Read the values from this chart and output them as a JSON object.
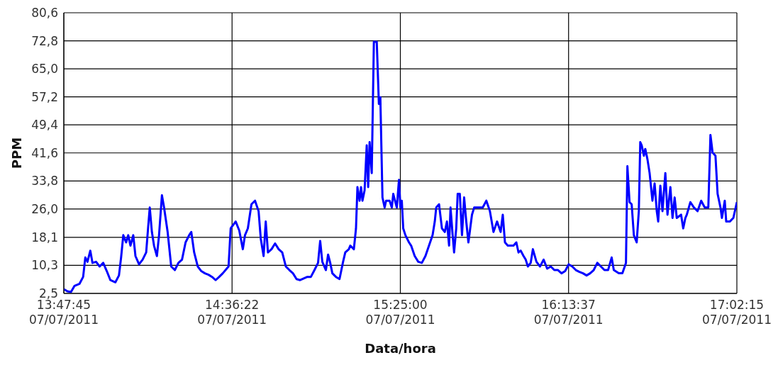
{
  "chart_data": {
    "type": "line",
    "xlabel": "Data/hora",
    "ylabel": "PPM",
    "color": "#0000ff",
    "grid": true,
    "marker": "none",
    "line_style": "solid",
    "xlim": [
      "2011-07-07T13:47:45",
      "2011-07-07T17:02:15"
    ],
    "xticks": [
      {
        "value": "2011-07-07T13:47:45",
        "label": "13:47:45\n07/07/2011"
      },
      {
        "value": "2011-07-07T14:36:22",
        "label": "14:36:22\n07/07/2011"
      },
      {
        "value": "2011-07-07T15:25:00",
        "label": "15:25:00\n07/07/2011"
      },
      {
        "value": "2011-07-07T16:13:37",
        "label": "16:13:37\n07/07/2011"
      },
      {
        "value": "2011-07-07T17:02:15",
        "label": "17:02:15\n07/07/2011"
      }
    ],
    "ylim": [
      2.5,
      80.6
    ],
    "yticks": [
      {
        "value": 2.5,
        "label": "2,5"
      },
      {
        "value": 10.3,
        "label": "10,3"
      },
      {
        "value": 18.1,
        "label": "18,1"
      },
      {
        "value": 26.0,
        "label": "26,0"
      },
      {
        "value": 33.8,
        "label": "33,8"
      },
      {
        "value": 41.6,
        "label": "41,6"
      },
      {
        "value": 49.4,
        "label": "49,4"
      },
      {
        "value": 57.2,
        "label": "57,2"
      },
      {
        "value": 65.0,
        "label": "65,0"
      },
      {
        "value": 72.8,
        "label": "72,8"
      },
      {
        "value": 80.6,
        "label": "80,6"
      }
    ],
    "x": [
      "2011-07-07T13:47:45",
      "2011-07-07T13:48:47",
      "2011-07-07T13:49:49",
      "2011-07-07T13:50:51",
      "2011-07-07T13:52:18",
      "2011-07-07T13:53:20",
      "2011-07-07T13:53:57",
      "2011-07-07T13:54:35",
      "2011-07-07T13:55:24",
      "2011-07-07T13:56:02",
      "2011-07-07T13:57:04",
      "2011-07-07T13:58:06",
      "2011-07-07T13:59:08",
      "2011-07-07T14:00:10",
      "2011-07-07T14:01:12",
      "2011-07-07T14:02:39",
      "2011-07-07T14:03:41",
      "2011-07-07T14:04:18",
      "2011-07-07T14:04:56",
      "2011-07-07T14:05:45",
      "2011-07-07T14:06:22",
      "2011-07-07T14:07:00",
      "2011-07-07T14:07:49",
      "2011-07-07T14:08:27",
      "2011-07-07T14:09:29",
      "2011-07-07T14:10:31",
      "2011-07-07T14:11:33",
      "2011-07-07T14:12:10",
      "2011-07-07T14:12:35",
      "2011-07-07T14:13:12",
      "2011-07-07T14:13:49",
      "2011-07-07T14:14:39",
      "2011-07-07T14:15:16",
      "2011-07-07T14:16:06",
      "2011-07-07T14:16:43",
      "2011-07-07T14:17:45",
      "2011-07-07T14:18:47",
      "2011-07-07T14:19:50",
      "2011-07-07T14:20:52",
      "2011-07-07T14:21:54",
      "2011-07-07T14:22:56",
      "2011-07-07T14:23:58",
      "2011-07-07T14:24:35",
      "2011-07-07T14:25:25",
      "2011-07-07T14:26:27",
      "2011-07-07T14:27:29",
      "2011-07-07T14:28:31",
      "2011-07-07T14:29:33",
      "2011-07-07T14:30:35",
      "2011-07-07T14:31:37",
      "2011-07-07T14:32:39",
      "2011-07-07T14:33:41",
      "2011-07-07T14:35:21",
      "2011-07-07T14:35:58",
      "2011-07-07T14:37:25",
      "2011-07-07T14:38:27",
      "2011-07-07T14:39:29",
      "2011-07-07T14:40:06",
      "2011-07-07T14:40:56",
      "2011-07-07T14:41:58",
      "2011-07-07T14:43:00",
      "2011-07-07T14:44:02",
      "2011-07-07T14:44:40",
      "2011-07-07T14:45:29",
      "2011-07-07T14:46:06",
      "2011-07-07T14:46:44",
      "2011-07-07T14:47:46",
      "2011-07-07T14:48:48",
      "2011-07-07T14:49:50",
      "2011-07-07T14:50:52",
      "2011-07-07T14:51:54",
      "2011-07-07T14:52:56",
      "2011-07-07T14:53:58",
      "2011-07-07T14:55:00",
      "2011-07-07T14:56:02",
      "2011-07-07T14:58:07",
      "2011-07-07T14:59:09",
      "2011-07-07T15:00:11",
      "2011-07-07T15:01:13",
      "2011-07-07T15:01:50",
      "2011-07-07T15:02:27",
      "2011-07-07T15:03:29",
      "2011-07-07T15:04:07",
      "2011-07-07T15:04:44",
      "2011-07-07T15:05:21",
      "2011-07-07T15:06:23",
      "2011-07-07T15:07:25",
      "2011-07-07T15:08:27",
      "2011-07-07T15:09:05",
      "2011-07-07T15:10:07",
      "2011-07-07T15:10:32",
      "2011-07-07T15:11:34",
      "2011-07-07T15:12:11",
      "2011-07-07T15:12:36",
      "2011-07-07T15:13:13",
      "2011-07-07T15:13:38",
      "2011-07-07T15:14:03",
      "2011-07-07T15:14:40",
      "2011-07-07T15:15:17",
      "2011-07-07T15:15:42",
      "2011-07-07T15:16:07",
      "2011-07-07T15:16:44",
      "2011-07-07T15:17:21",
      "2011-07-07T15:18:11",
      "2011-07-07T15:18:48",
      "2011-07-07T15:19:13",
      "2011-07-07T15:19:50",
      "2011-07-07T15:20:28",
      "2011-07-07T15:20:52",
      "2011-07-07T15:21:54",
      "2011-07-07T15:22:32",
      "2011-07-07T15:22:57",
      "2011-07-07T15:23:59",
      "2011-07-07T15:24:36",
      "2011-07-07T15:25:01",
      "2011-07-07T15:25:25",
      "2011-07-07T15:25:50",
      "2011-07-07T15:26:28",
      "2011-07-07T15:27:30",
      "2011-07-07T15:28:07",
      "2011-07-07T15:29:09",
      "2011-07-07T15:30:11",
      "2011-07-07T15:31:13",
      "2011-07-07T15:32:15",
      "2011-07-07T15:33:17",
      "2011-07-07T15:34:19",
      "2011-07-07T15:34:57",
      "2011-07-07T15:35:22",
      "2011-07-07T15:36:11",
      "2011-07-07T15:37:01",
      "2011-07-07T15:37:51",
      "2011-07-07T15:38:28",
      "2011-07-07T15:39:05",
      "2011-07-07T15:39:30",
      "2011-07-07T15:40:07",
      "2011-07-07T15:40:32",
      "2011-07-07T15:41:09",
      "2011-07-07T15:41:34",
      "2011-07-07T15:42:11",
      "2011-07-07T15:42:49",
      "2011-07-07T15:43:26",
      "2011-07-07T15:44:03",
      "2011-07-07T15:44:40",
      "2011-07-07T15:45:42",
      "2011-07-07T15:46:20",
      "2011-07-07T15:47:22",
      "2011-07-07T15:48:49",
      "2011-07-07T15:49:51",
      "2011-07-07T15:50:53",
      "2011-07-07T15:51:55",
      "2011-07-07T15:52:57",
      "2011-07-07T15:53:59",
      "2011-07-07T15:54:36",
      "2011-07-07T15:55:14",
      "2011-07-07T15:56:03",
      "2011-07-07T15:57:42",
      "2011-07-07T15:58:31",
      "2011-07-07T15:59:09",
      "2011-07-07T15:59:47",
      "2011-07-07T16:00:36",
      "2011-07-07T16:01:14",
      "2011-07-07T16:01:51",
      "2011-07-07T16:02:40",
      "2011-07-07T16:03:18",
      "2011-07-07T16:04:20",
      "2011-07-07T16:05:22",
      "2011-07-07T16:06:24",
      "2011-07-07T16:07:26",
      "2011-07-07T16:08:28",
      "2011-07-07T16:09:30",
      "2011-07-07T16:10:33",
      "2011-07-07T16:11:35",
      "2011-07-07T16:12:37",
      "2011-07-07T16:13:39",
      "2011-07-07T16:14:41",
      "2011-07-07T16:15:43",
      "2011-07-07T16:16:45",
      "2011-07-07T16:17:47",
      "2011-07-07T16:18:49",
      "2011-07-07T16:19:51",
      "2011-07-07T16:20:53",
      "2011-07-07T16:21:55",
      "2011-07-07T16:22:57",
      "2011-07-07T16:23:59",
      "2011-07-07T16:25:02",
      "2011-07-07T16:26:04",
      "2011-07-07T16:26:41",
      "2011-07-07T16:28:08",
      "2011-07-07T16:29:10",
      "2011-07-07T16:30:12",
      "2011-07-07T16:30:37",
      "2011-07-07T16:31:14",
      "2011-07-07T16:31:51",
      "2011-07-07T16:32:29",
      "2011-07-07T16:33:18",
      "2011-07-07T16:33:55",
      "2011-07-07T16:34:20",
      "2011-07-07T16:34:45",
      "2011-07-07T16:35:23",
      "2011-07-07T16:35:47",
      "2011-07-07T16:36:25",
      "2011-07-07T16:37:02",
      "2011-07-07T16:37:51",
      "2011-07-07T16:38:29",
      "2011-07-07T16:39:06",
      "2011-07-07T16:39:31",
      "2011-07-07T16:40:08",
      "2011-07-07T16:40:45",
      "2011-07-07T16:41:35",
      "2011-07-07T16:42:12",
      "2011-07-07T16:43:02",
      "2011-07-07T16:43:39",
      "2011-07-07T16:44:16",
      "2011-07-07T16:44:53",
      "2011-07-07T16:46:08",
      "2011-07-07T16:46:45",
      "2011-07-07T16:47:22",
      "2011-07-07T16:47:47",
      "2011-07-07T16:48:49",
      "2011-07-07T16:49:51",
      "2011-07-07T16:50:54",
      "2011-07-07T16:51:56",
      "2011-07-07T16:52:58",
      "2011-07-07T16:54:00",
      "2011-07-07T16:54:37",
      "2011-07-07T16:55:14",
      "2011-07-07T16:56:04",
      "2011-07-07T16:56:41",
      "2011-07-07T16:57:31",
      "2011-07-07T16:57:56",
      "2011-07-07T16:58:45",
      "2011-07-07T16:59:10",
      "2011-07-07T17:00:12",
      "2011-07-07T17:01:14",
      "2011-07-07T17:02:15"
    ],
    "values": [
      3.7,
      3.1,
      2.9,
      4.6,
      5.2,
      7.1,
      12.5,
      11.3,
      14.4,
      11.0,
      11.3,
      10.0,
      11.0,
      8.7,
      6.2,
      5.6,
      7.5,
      12.5,
      18.7,
      16.7,
      18.7,
      15.8,
      18.7,
      12.9,
      10.6,
      11.9,
      13.9,
      21.5,
      26.4,
      19.6,
      15.8,
      12.9,
      18.7,
      29.8,
      26.4,
      19.6,
      10.0,
      9.0,
      11.0,
      11.9,
      16.7,
      18.7,
      19.6,
      13.9,
      10.0,
      8.7,
      8.1,
      7.7,
      7.1,
      6.2,
      7.1,
      8.1,
      10.0,
      20.6,
      22.5,
      20.0,
      14.8,
      18.7,
      20.6,
      27.3,
      28.3,
      25.4,
      17.7,
      12.9,
      22.5,
      13.9,
      14.8,
      16.4,
      14.8,
      13.9,
      10.0,
      9.0,
      8.1,
      6.5,
      6.2,
      7.1,
      7.1,
      9.0,
      11.0,
      17.1,
      11.3,
      9.0,
      13.3,
      11.0,
      8.1,
      7.1,
      6.5,
      11.3,
      13.9,
      14.8,
      15.8,
      14.8,
      20.6,
      32.1,
      28.3,
      32.1,
      28.3,
      31.2,
      43.7,
      32.1,
      44.6,
      36.0,
      72.5,
      72.5,
      55.2,
      57.1,
      29.2,
      26.4,
      28.3,
      28.3,
      26.4,
      30.2,
      26.4,
      34.1,
      26.4,
      28.3,
      20.6,
      18.7,
      16.7,
      15.8,
      12.9,
      11.3,
      11.0,
      12.9,
      15.8,
      18.7,
      22.5,
      26.4,
      27.3,
      20.6,
      19.6,
      22.5,
      15.8,
      26.4,
      18.7,
      13.9,
      20.6,
      30.2,
      30.2,
      18.7,
      29.2,
      22.5,
      16.7,
      24.4,
      26.4,
      26.4,
      26.4,
      28.3,
      25.4,
      19.6,
      22.5,
      19.6,
      24.4,
      16.7,
      15.8,
      15.8,
      16.7,
      13.9,
      14.4,
      12.9,
      11.9,
      10.0,
      11.0,
      14.8,
      11.3,
      10.0,
      11.9,
      9.4,
      10.0,
      9.0,
      9.0,
      8.1,
      8.7,
      10.6,
      10.0,
      9.0,
      8.5,
      8.1,
      7.5,
      8.1,
      9.0,
      11.0,
      10.0,
      9.0,
      9.0,
      12.5,
      9.0,
      8.1,
      8.1,
      11.0,
      37.9,
      27.9,
      27.3,
      18.7,
      16.7,
      25.4,
      44.6,
      43.7,
      40.8,
      42.7,
      39.8,
      36.0,
      28.3,
      33.1,
      25.4,
      22.5,
      32.5,
      25.4,
      36.0,
      24.4,
      32.1,
      23.5,
      29.2,
      23.5,
      24.4,
      20.6,
      23.5,
      24.4,
      27.9,
      26.4,
      25.4,
      28.3,
      26.4,
      26.4,
      46.6,
      41.7,
      40.8,
      30.2,
      26.4,
      23.5,
      28.3,
      22.5,
      22.5,
      23.5,
      27.9
    ]
  }
}
